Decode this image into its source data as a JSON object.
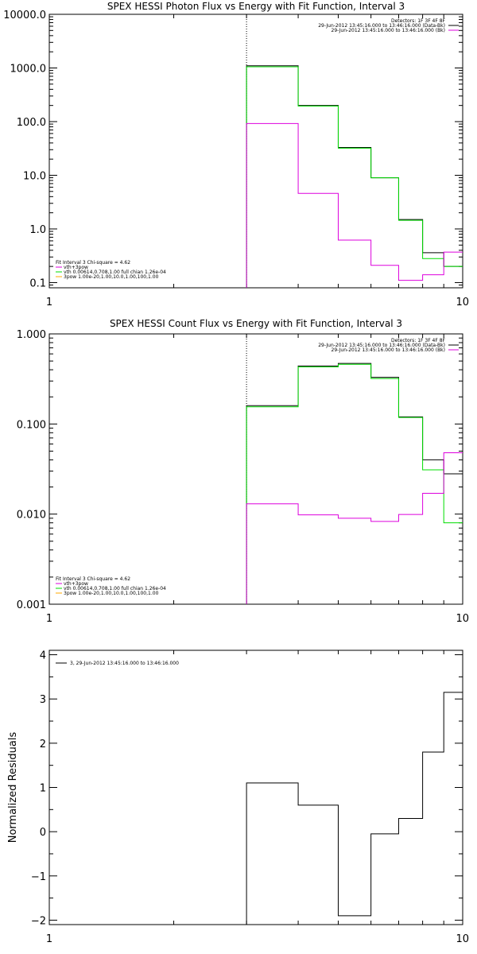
{
  "chart_data": [
    {
      "type": "line",
      "title": "SPEX HESSI Photon Flux vs Energy with Fit Function, Interval 3",
      "xscale": "log",
      "yscale": "log",
      "xlim": [
        1,
        10
      ],
      "ylim": [
        0.08,
        10000
      ],
      "x_ticks": [
        "1",
        "10"
      ],
      "y_ticks": [
        {
          "v": 10000,
          "label": "10000.0"
        },
        {
          "v": 1000,
          "label": "1000.0"
        },
        {
          "v": 100,
          "label": "100.0"
        },
        {
          "v": 10,
          "label": "10.0"
        },
        {
          "v": 1,
          "label": "1.0"
        },
        {
          "v": 0.1,
          "label": "0.1"
        }
      ],
      "vline_x": 3,
      "legend_top_right": [
        "Detectors: 1F 3F 4F 8F",
        "29-Jun-2012 13:45:16.000 to 13:46:16.000 (Data-Bk)",
        "29-Jun-2012 13:45:16.000 to 13:46:16.000 (Bk)"
      ],
      "legend_bottom_left": [
        "Fit Interval 3   Chi-square = 4.62",
        "vth+3pow",
        "vth 0.00614,0.708,1.00  full chian 1.26e-04",
        "3pow 1.00e-20,1.00,10.0,1.00,100,1.00"
      ],
      "bin_edges": [
        3,
        4,
        5,
        6,
        7,
        8,
        9,
        10
      ],
      "series": [
        {
          "name": "29-Jun-2012 13:45:16.000 to 13:46:16.000 (Data-Bk)",
          "color": "#000000",
          "values": [
            1100,
            200,
            33,
            9,
            1.5,
            0.36,
            0.2
          ]
        },
        {
          "name": "vth+3pow",
          "color": "#00dd00",
          "values": [
            1050,
            195,
            32,
            9,
            1.45,
            0.28,
            0.2
          ]
        },
        {
          "name": "29-Jun-2012 13:45:16.000 to 13:46:16.000 (Bk)",
          "color": "#dd00dd",
          "values": [
            92,
            4.6,
            0.62,
            0.21,
            0.11,
            0.14,
            0.37
          ]
        }
      ]
    },
    {
      "type": "line",
      "title": "SPEX HESSI Count Flux vs Energy with Fit Function, Interval 3",
      "xscale": "log",
      "yscale": "log",
      "xlim": [
        1,
        10
      ],
      "ylim": [
        0.001,
        1.0
      ],
      "x_ticks": [
        "1",
        "10"
      ],
      "y_ticks": [
        {
          "v": 1.0,
          "label": "1.000"
        },
        {
          "v": 0.1,
          "label": "0.100"
        },
        {
          "v": 0.01,
          "label": "0.010"
        },
        {
          "v": 0.001,
          "label": "0.001"
        }
      ],
      "vline_x": 3,
      "legend_top_right": [
        "Detectors: 1F 3F 4F 8F",
        "29-Jun-2012 13:45:16.000 to 13:46:16.000 (Data-Bk)",
        "29-Jun-2012 13:45:16.000 to 13:46:16.000 (Bk)"
      ],
      "legend_bottom_left": [
        "Fit Interval 3   Chi-square = 4.62",
        "vth+3pow",
        "vth 0.00614,0.708,1.00  full chian 1.26e-04",
        "3pow 1.00e-20,1.00,10.0,1.00,100,1.00"
      ],
      "bin_edges": [
        3,
        4,
        5,
        6,
        7,
        8,
        9,
        10
      ],
      "series": [
        {
          "name": "29-Jun-2012 13:45:16.000 to 13:46:16.000 (Data-Bk)",
          "color": "#000000",
          "values": [
            0.16,
            0.44,
            0.47,
            0.33,
            0.12,
            0.04,
            0.028
          ]
        },
        {
          "name": "vth+3pow",
          "color": "#00dd00",
          "values": [
            0.155,
            0.43,
            0.46,
            0.32,
            0.118,
            0.031,
            0.008
          ]
        },
        {
          "name": "29-Jun-2012 13:45:16.000 to 13:46:16.000 (Bk)",
          "color": "#dd00dd",
          "values": [
            0.013,
            0.0098,
            0.009,
            0.0083,
            0.0099,
            0.017,
            0.048
          ]
        }
      ]
    },
    {
      "type": "line",
      "title": "",
      "xscale": "log",
      "yscale": "linear",
      "xlim": [
        1,
        10
      ],
      "ylim": [
        -2.1,
        4.1
      ],
      "x_ticks": [
        "1",
        "10"
      ],
      "y_ticks": [
        {
          "v": 4,
          "label": "4"
        },
        {
          "v": 3,
          "label": "3"
        },
        {
          "v": 2,
          "label": "2"
        },
        {
          "v": 1,
          "label": "1"
        },
        {
          "v": 0,
          "label": "0"
        },
        {
          "v": -1,
          "label": "−1"
        },
        {
          "v": -2,
          "label": "−2"
        }
      ],
      "ylabel": "Normalized Residuals",
      "legend_top_left": [
        "3, 29-Jun-2012 13:45:16.000 to 13:46:16.000"
      ],
      "bin_edges": [
        3,
        4,
        5,
        6,
        7,
        8,
        9,
        10
      ],
      "series": [
        {
          "name": "3, 29-Jun-2012 13:45:16.000 to 13:46:16.000",
          "color": "#000000",
          "values": [
            1.1,
            0.6,
            -1.9,
            -0.05,
            0.3,
            1.8,
            3.15
          ]
        }
      ]
    }
  ]
}
